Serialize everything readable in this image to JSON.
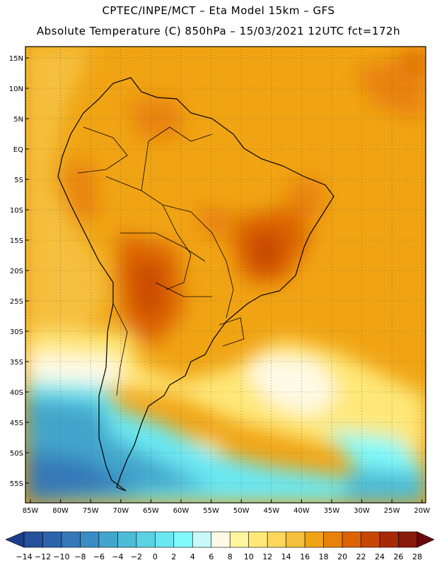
{
  "title_line1": "CPTEC/INPE/MCT –  Eta Model 15km – GFS",
  "title_line2": "Absolute Temperature (C) 850hPa – 15/03/2021 12UTC fct=172h",
  "lat_labels": [
    "15N",
    "10N",
    "5N",
    "EQ",
    "5S",
    "10S",
    "15S",
    "20S",
    "25S",
    "30S",
    "35S",
    "40S",
    "45S",
    "50S",
    "55S"
  ],
  "lon_labels": [
    "85W",
    "80W",
    "75W",
    "70W",
    "65W",
    "60W",
    "55W",
    "50W",
    "45W",
    "40W",
    "35W",
    "30W",
    "25W",
    "20W"
  ],
  "colorbar": {
    "labels": [
      "-14",
      "-12",
      "-10",
      "-8",
      "-6",
      "-4",
      "-2",
      "0",
      "2",
      "4",
      "6",
      "8",
      "10",
      "12",
      "14",
      "16",
      "18",
      "20",
      "22",
      "24",
      "26",
      "28"
    ],
    "colors": [
      "#1e3c8c",
      "#24509c",
      "#2c64ac",
      "#3478b8",
      "#3a8cc4",
      "#42a6cc",
      "#4cbcd8",
      "#5ad2e4",
      "#6ae8f2",
      "#80fafa",
      "#c8f8fa",
      "#fffae6",
      "#fff5a0",
      "#ffe878",
      "#fcd75a",
      "#f5c03c",
      "#f0a414",
      "#e8820a",
      "#dc6404",
      "#c84604",
      "#a82a04",
      "#881a0a",
      "#6a0810"
    ]
  }
}
